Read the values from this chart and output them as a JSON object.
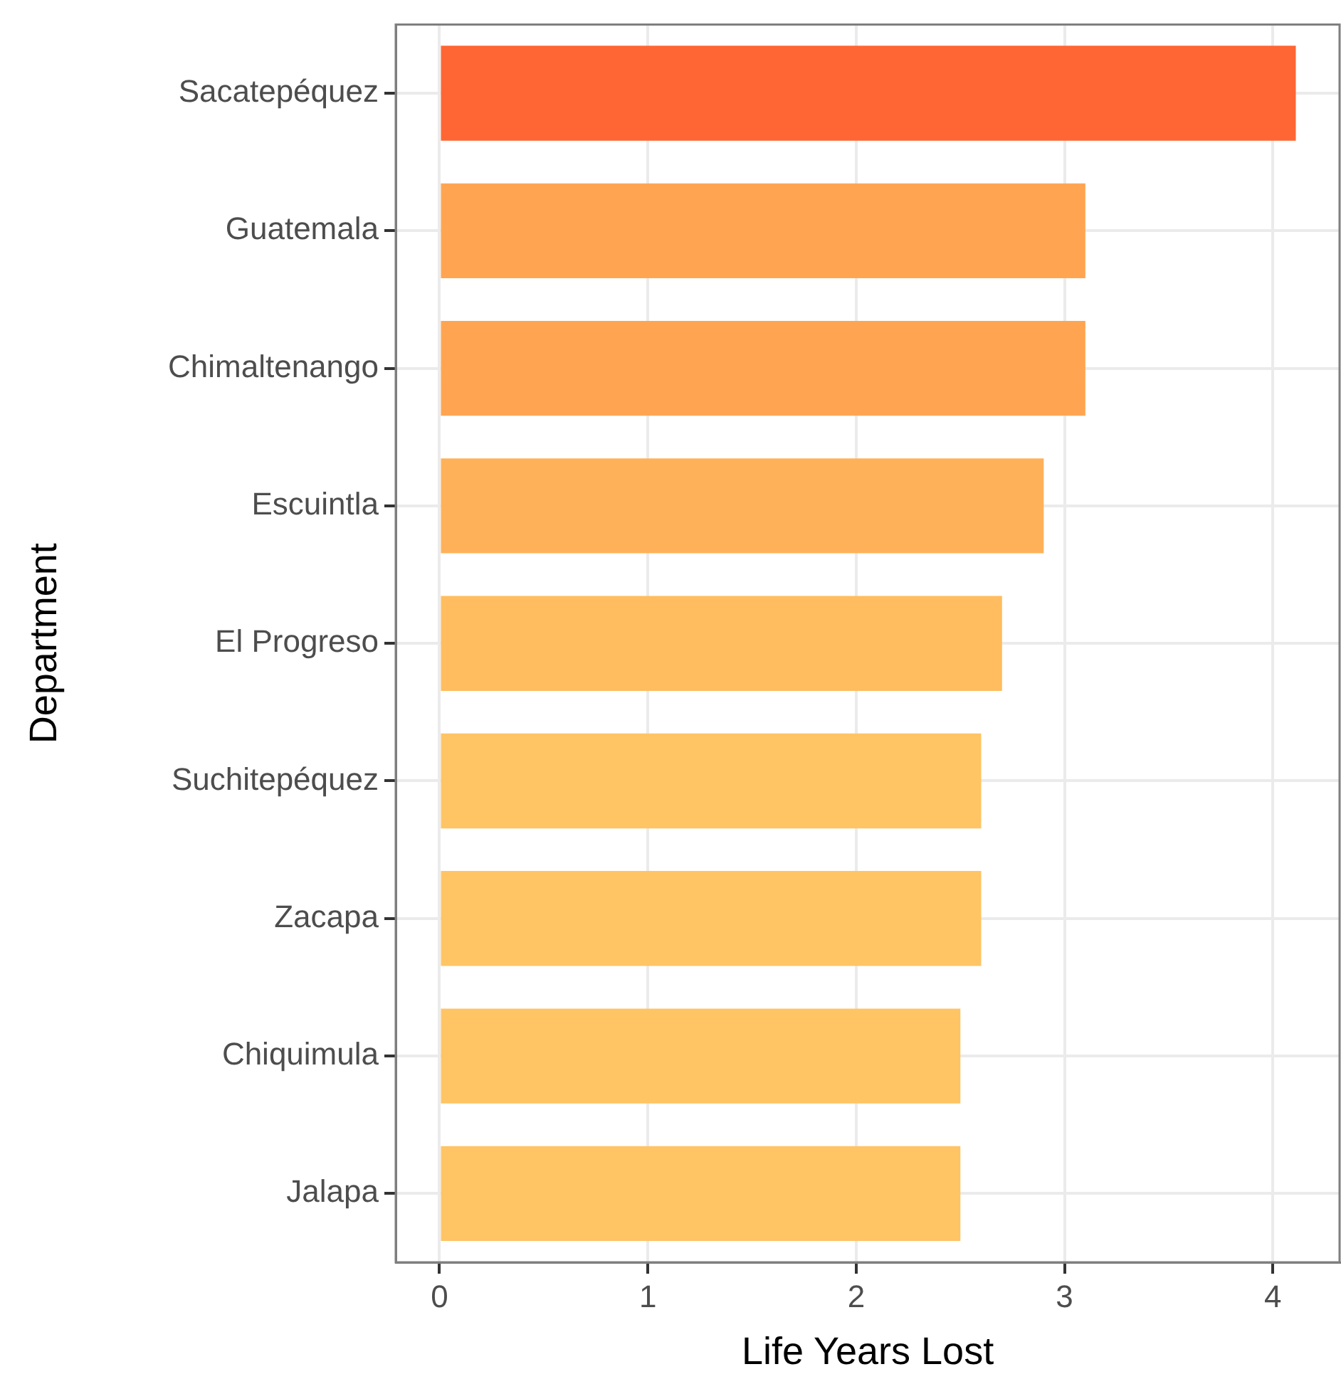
{
  "chart_data": {
    "type": "bar",
    "orientation": "horizontal",
    "xlabel": "Life Years Lost",
    "ylabel": "Department",
    "categories": [
      "Sacatepéquez",
      "Guatemala",
      "Chimaltenango",
      "Escuintla",
      "El Progreso",
      "Suchitepéquez",
      "Zacapa",
      "Chiquimula",
      "Jalapa"
    ],
    "values": [
      4.11,
      3.1,
      3.1,
      2.9,
      2.7,
      2.6,
      2.6,
      2.5,
      2.5
    ],
    "colors": [
      "#ff6633",
      "#ffa552",
      "#ffa552",
      "#ffb15a",
      "#ffbd5f",
      "#ffc464",
      "#ffc464",
      "#ffc464",
      "#ffc464"
    ],
    "xlim": [
      -0.21,
      4.32
    ],
    "xticks": [
      0,
      1,
      2,
      3,
      4
    ],
    "grid": true,
    "legend": false
  }
}
